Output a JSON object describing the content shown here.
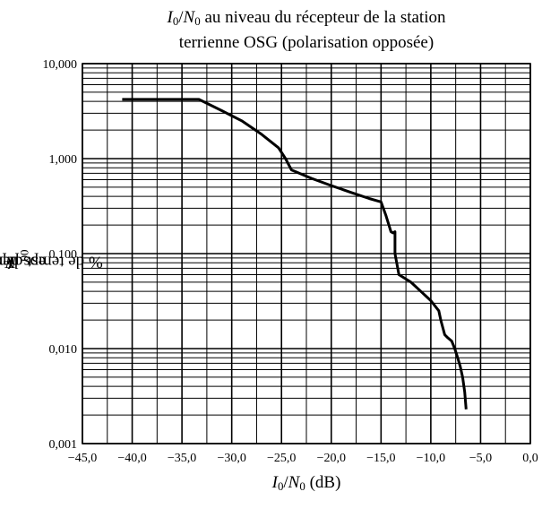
{
  "chart_data": {
    "type": "line",
    "title": {
      "line1": {
        "i": "I",
        "s0": "0",
        "slash": "/",
        "n": "N",
        "s1": "0",
        "rest": " au niveau du récepteur de la station"
      },
      "line2": "terrienne OSG (polarisation opposée)"
    },
    "xlabel": {
      "i": "I",
      "s0": "0",
      "slash": "/",
      "n": "N",
      "s1": "0",
      "rest": " (dB)"
    },
    "ylabel": {
      "pre": "% de temps pendant lequel ",
      "i": "I",
      "s0": "0",
      "slash": "/",
      "n": "N",
      "s1": "0",
      "post": " est dépasé"
    },
    "xlim": [
      -45,
      0
    ],
    "ylim": [
      0.001,
      10
    ],
    "yscale": "log",
    "grid": true,
    "x_ticks": [
      "−45,0",
      "−40,0",
      "−35,0",
      "−30,0",
      "−25,0",
      "−20,0",
      "−15,0",
      "−10,0",
      "−5,0",
      "0,0"
    ],
    "x_tick_values": [
      -45,
      -40,
      -35,
      -30,
      -25,
      -20,
      -15,
      -10,
      -5,
      0
    ],
    "y_ticks": [
      "0,001",
      "0,010",
      "0,100",
      "1,000",
      "10,000"
    ],
    "y_tick_values": [
      0.001,
      0.01,
      0.1,
      1,
      10
    ],
    "series": [
      {
        "x": [
          -41,
          -33.3,
          -31,
          -29,
          -27,
          -25.3,
          -24.6,
          -24,
          -22,
          -20,
          -18,
          -16.2,
          -15,
          -14.5,
          -14,
          -13.8,
          -13.6,
          -13.6,
          -13.2,
          -12,
          -11,
          -10,
          -9.2,
          -9,
          -8.6,
          -8.3,
          -7.9,
          -7.6,
          -7.3,
          -7.05,
          -6.8,
          -6.6,
          -6.45
        ],
        "y": [
          4.2,
          4.2,
          3.2,
          2.5,
          1.8,
          1.3,
          1.0,
          0.76,
          0.62,
          0.52,
          0.44,
          0.38,
          0.35,
          0.25,
          0.17,
          0.165,
          0.17,
          0.1,
          0.06,
          0.05,
          0.04,
          0.032,
          0.025,
          0.02,
          0.014,
          0.013,
          0.012,
          0.01,
          0.008,
          0.0065,
          0.005,
          0.0035,
          0.0023
        ],
        "color": "#000000"
      }
    ]
  }
}
